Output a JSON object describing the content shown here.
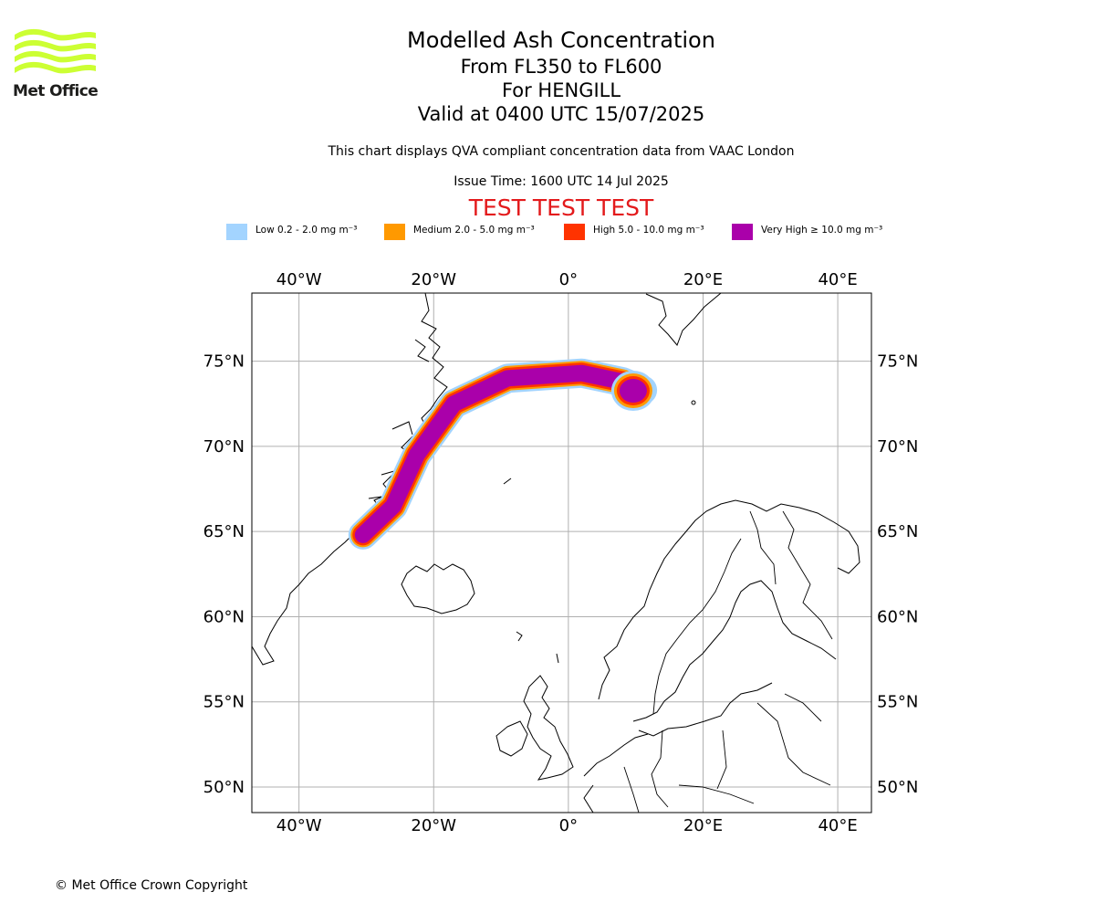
{
  "logo": {
    "text": "Met Office",
    "color": "#ccff33"
  },
  "title": {
    "line1": "Modelled Ash Concentration",
    "line2": "From FL350 to FL600",
    "line3": "For HENGILL",
    "line4": "Valid at 0400 UTC 15/07/2025"
  },
  "subtitle": "This chart displays QVA compliant concentration data from VAAC London",
  "issue_time": "Issue Time: 1600 UTC 14 Jul 2025",
  "test_banner": "TEST TEST TEST",
  "legend": [
    {
      "label": "Low 0.2 - 2.0 mg m⁻³",
      "color": "#a3d4ff"
    },
    {
      "label": "Medium 2.0 - 5.0 mg m⁻³",
      "color": "#ff9900"
    },
    {
      "label": "High 5.0 - 10.0 mg m⁻³",
      "color": "#ff3300"
    },
    {
      "label": "Very High ≥ 10.0 mg m⁻³",
      "color": "#aa00aa"
    }
  ],
  "map": {
    "lon_range": [
      -47,
      45
    ],
    "lat_range": [
      48.5,
      79
    ],
    "lon_labels": [
      "40°W",
      "20°W",
      "0°",
      "20°E",
      "40°E"
    ],
    "lat_labels": [
      "75°N",
      "70°N",
      "65°N",
      "60°N",
      "55°N",
      "50°N"
    ],
    "grid": true,
    "plume_axis": [
      [
        -30.5,
        64.8
      ],
      [
        -26,
        66.5
      ],
      [
        -22.5,
        69.5
      ],
      [
        -17,
        72.5
      ],
      [
        -9,
        74.0
      ],
      [
        2,
        74.3
      ],
      [
        8,
        73.8
      ],
      [
        11,
        73.3
      ]
    ]
  },
  "copyright": "© Met Office Crown Copyright"
}
